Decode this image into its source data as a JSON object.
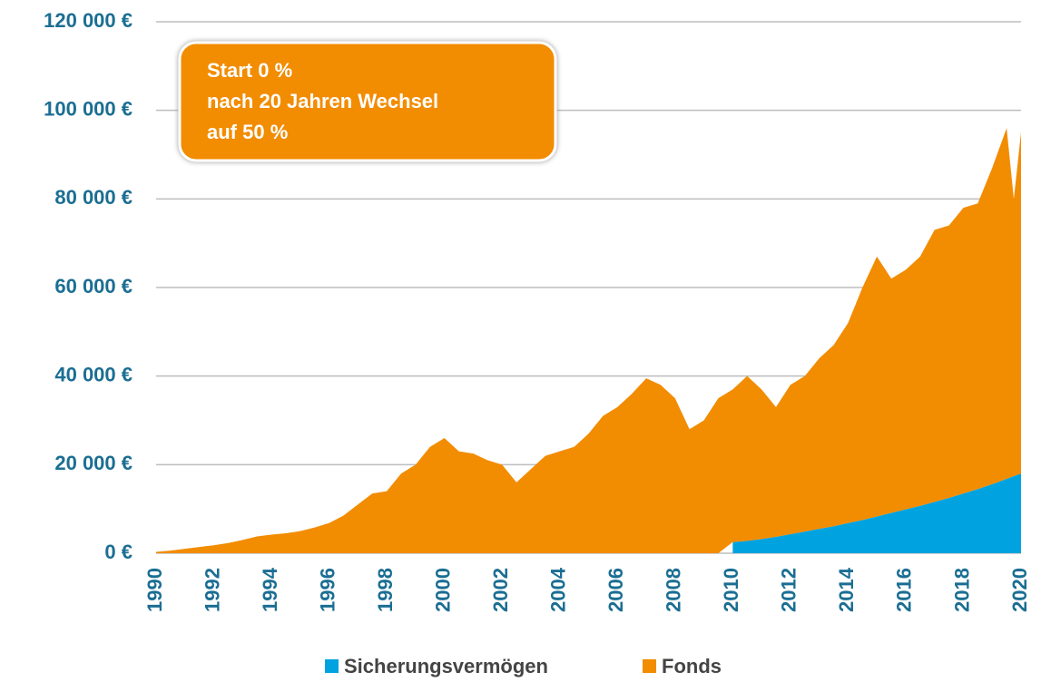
{
  "chart_data": {
    "type": "stacked_area",
    "annotation": [
      "Start 0 %",
      "nach 20 Jahren Wechsel",
      "auf 50 %"
    ],
    "x": [
      1990,
      1990.5,
      1991,
      1991.5,
      1992,
      1992.5,
      1993,
      1993.5,
      1994,
      1994.5,
      1995,
      1995.5,
      1996,
      1996.5,
      1997,
      1997.5,
      1998,
      1998.5,
      1999,
      1999.5,
      2000,
      2000.5,
      2001,
      2001.5,
      2002,
      2002.5,
      2003,
      2003.5,
      2004,
      2004.5,
      2005,
      2005.5,
      2006,
      2006.5,
      2007,
      2007.5,
      2008,
      2008.5,
      2009,
      2009.5,
      2010,
      2010.5,
      2011,
      2011.5,
      2012,
      2012.5,
      2013,
      2013.5,
      2014,
      2014.5,
      2015,
      2015.5,
      2016,
      2016.5,
      2017,
      2017.5,
      2018,
      2018.5,
      2019,
      2019.5,
      2019.75,
      2020
    ],
    "series": [
      {
        "name": "Sicherungsvermögen",
        "color": "#00a3e0",
        "values": [
          null,
          null,
          null,
          null,
          null,
          null,
          null,
          null,
          null,
          null,
          null,
          null,
          null,
          null,
          null,
          null,
          null,
          null,
          null,
          null,
          null,
          null,
          null,
          null,
          null,
          null,
          null,
          null,
          null,
          null,
          null,
          null,
          null,
          null,
          null,
          null,
          null,
          null,
          null,
          null,
          2500,
          2800,
          3200,
          3700,
          4300,
          4900,
          5500,
          6100,
          6800,
          7500,
          8300,
          9100,
          9900,
          10700,
          11600,
          12500,
          13500,
          14500,
          15600,
          16800,
          17400,
          18000
        ]
      },
      {
        "name": "Fonds",
        "color": "#f28c00",
        "values": [
          300,
          600,
          1000,
          1400,
          1800,
          2300,
          3000,
          3800,
          4200,
          4500,
          5000,
          5800,
          6800,
          8500,
          11000,
          13500,
          14000,
          18000,
          20000,
          24000,
          26000,
          23000,
          22500,
          21000,
          20000,
          16000,
          19000,
          22000,
          23000,
          24000,
          27000,
          31000,
          33000,
          36000,
          39500,
          38000,
          35000,
          28000,
          30000,
          35000,
          34500,
          37200,
          33800,
          29300,
          33700,
          35100,
          38500,
          40900,
          45200,
          52500,
          58700,
          52900,
          54100,
          56300,
          61400,
          61500,
          64500,
          64500,
          71400,
          79200,
          62600,
          77000
        ]
      }
    ],
    "xlim": [
      1990,
      2020
    ],
    "xticks": [
      1990,
      1992,
      1994,
      1996,
      1998,
      2000,
      2002,
      2004,
      2006,
      2008,
      2010,
      2012,
      2014,
      2016,
      2018,
      2020
    ],
    "ylim": [
      0,
      120000
    ],
    "yticks": [
      {
        "value": 0,
        "label": "0 €"
      },
      {
        "value": 20000,
        "label": "20 000 €"
      },
      {
        "value": 40000,
        "label": "40 000 €"
      },
      {
        "value": 60000,
        "label": "60 000 €"
      },
      {
        "value": 80000,
        "label": "80 000 €"
      },
      {
        "value": 100000,
        "label": "100 000 €"
      },
      {
        "value": 120000,
        "label": "120 000 €"
      }
    ],
    "grid": true,
    "legend": "bottom"
  }
}
